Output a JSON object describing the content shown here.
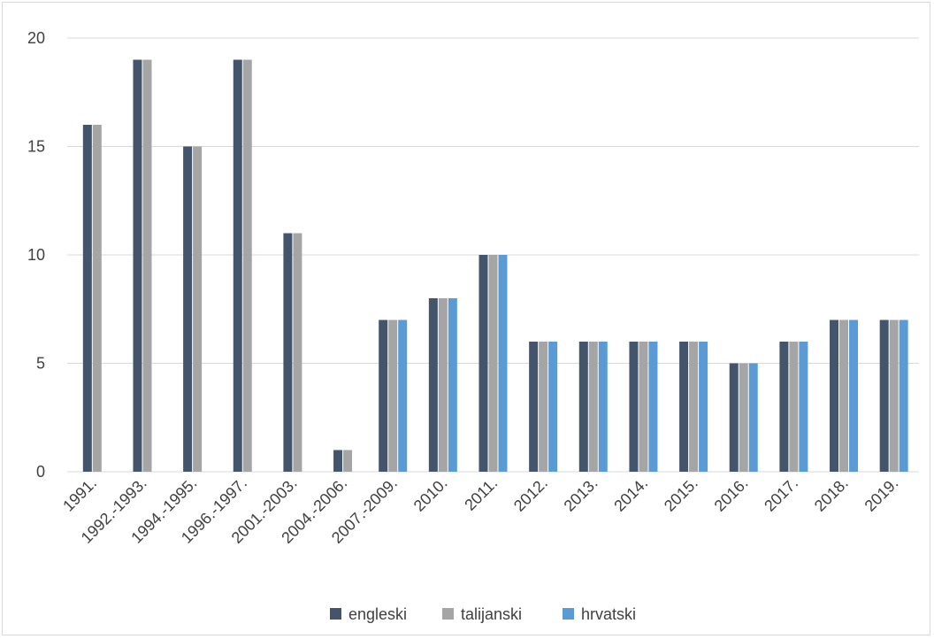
{
  "chart_data": {
    "type": "bar",
    "title": "",
    "xlabel": "",
    "ylabel": "",
    "ylim": [
      0,
      20
    ],
    "yticks": [
      "0",
      "5",
      "10",
      "15",
      "20"
    ],
    "grid": true,
    "legend_position": "bottom",
    "categories": [
      "1991.",
      "1992.-1993.",
      "1994.-1995.",
      "1996.-1997.",
      "2001.-2003.",
      "2004.-2006.",
      "2007.-2009.",
      "2010.",
      "2011.",
      "2012.",
      "2013.",
      "2014.",
      "2015.",
      "2016.",
      "2017.",
      "2018.",
      "2019."
    ],
    "series": [
      {
        "name": "engleski",
        "color": "#44546a",
        "values": [
          16,
          19,
          15,
          19,
          11,
          1,
          7,
          8,
          10,
          6,
          6,
          6,
          6,
          5,
          6,
          7,
          7
        ]
      },
      {
        "name": "talijanski",
        "color": "#a5a5a5",
        "values": [
          16,
          19,
          15,
          19,
          11,
          1,
          7,
          8,
          10,
          6,
          6,
          6,
          6,
          5,
          6,
          7,
          7
        ]
      },
      {
        "name": "hrvatski",
        "color": "#5b9bd5",
        "values": [
          null,
          null,
          null,
          null,
          null,
          null,
          7,
          8,
          10,
          6,
          6,
          6,
          6,
          5,
          6,
          7,
          7
        ]
      }
    ]
  }
}
